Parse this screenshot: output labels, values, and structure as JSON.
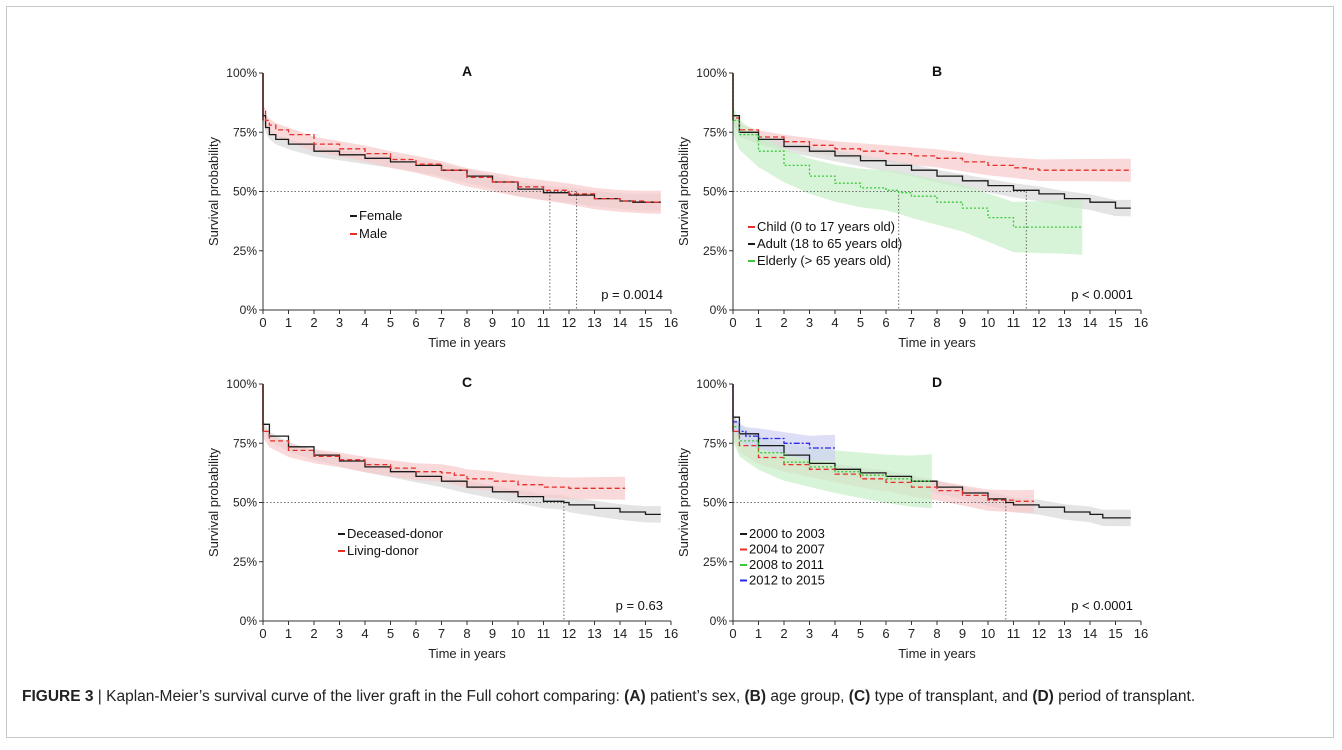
{
  "caption": {
    "label": "FIGURE 3",
    "separator": " | ",
    "text": "Kaplan-Meier’s survival curve of the liver graft in the Full cohort comparing: ",
    "parts": [
      {
        "key": "(A)",
        "text": " patient’s sex, "
      },
      {
        "key": "(B)",
        "text": " age group, "
      },
      {
        "key": "(C)",
        "text": " type of transplant, and "
      },
      {
        "key": "(D)",
        "text": " period of transplant."
      }
    ]
  },
  "colors": {
    "black": "#1a1a1a",
    "red": "#e8302a",
    "green": "#3cc83c",
    "blue": "#2a2ae8",
    "ci_gray": "#d9d9d9",
    "ci_red": "#f6c9c9",
    "ci_green": "#c8f0c8"
  },
  "chart_data": [
    {
      "panel": "A",
      "type": "line",
      "title": "A",
      "xlabel": "Time in years",
      "ylabel": "Survival probability",
      "xlim": [
        0,
        16
      ],
      "ylim": [
        0,
        1
      ],
      "xticks": [
        "0",
        "1",
        "2",
        "3",
        "4",
        "5",
        "6",
        "7",
        "8",
        "9",
        "10",
        "11",
        "12",
        "13",
        "14",
        "15",
        "16"
      ],
      "yticks": [
        "0%",
        "25%",
        "50%",
        "75%",
        "100%"
      ],
      "pvalue": "p = 0.0014",
      "median_lines": [
        11.25,
        12.3
      ],
      "legend": [
        {
          "name": "Female",
          "color": "black"
        },
        {
          "name": "Male",
          "color": "red"
        }
      ],
      "series": [
        {
          "name": "Female",
          "color": "black",
          "x": [
            0,
            0.1,
            0.25,
            0.5,
            1,
            2,
            3,
            4,
            5,
            6,
            7,
            8,
            9,
            10,
            11,
            12,
            13,
            14,
            14.5,
            15.6
          ],
          "y": [
            0.82,
            0.77,
            0.74,
            0.72,
            0.7,
            0.67,
            0.655,
            0.64,
            0.625,
            0.61,
            0.59,
            0.565,
            0.54,
            0.51,
            0.495,
            0.485,
            0.47,
            0.46,
            0.455,
            0.455
          ]
        },
        {
          "name": "Male",
          "color": "red",
          "x": [
            0,
            0.1,
            0.25,
            0.5,
            1,
            2,
            3,
            4,
            5,
            6,
            7,
            8,
            9,
            10,
            11,
            12,
            13,
            14,
            15,
            15.6
          ],
          "y": [
            0.85,
            0.8,
            0.78,
            0.76,
            0.74,
            0.7,
            0.68,
            0.66,
            0.635,
            0.615,
            0.59,
            0.56,
            0.54,
            0.52,
            0.505,
            0.49,
            0.47,
            0.46,
            0.455,
            0.455
          ]
        }
      ]
    },
    {
      "panel": "B",
      "type": "line",
      "title": "B",
      "xlabel": "Time in years",
      "ylabel": "Survival probability",
      "xlim": [
        0,
        16
      ],
      "ylim": [
        0,
        1
      ],
      "xticks": [
        "0",
        "1",
        "2",
        "3",
        "4",
        "5",
        "6",
        "7",
        "8",
        "9",
        "10",
        "11",
        "12",
        "13",
        "14",
        "15",
        "16"
      ],
      "yticks": [
        "0%",
        "25%",
        "50%",
        "75%",
        "100%"
      ],
      "pvalue": "p < 0.0001",
      "median_lines": [
        6.5,
        11.5
      ],
      "legend": [
        {
          "name": "Child (0 to 17 years old)",
          "color": "red"
        },
        {
          "name": "Adult (18 to 65 years old)",
          "color": "black"
        },
        {
          "name": "Elderly (> 65 years old)",
          "color": "green"
        }
      ],
      "series": [
        {
          "name": "Child (0 to 17 years old)",
          "color": "red",
          "x": [
            0,
            0.25,
            1,
            2,
            3,
            4,
            5,
            6,
            7,
            8,
            9,
            10,
            11,
            11.5,
            12,
            14,
            15.6
          ],
          "y": [
            0.81,
            0.76,
            0.73,
            0.71,
            0.695,
            0.68,
            0.67,
            0.66,
            0.65,
            0.64,
            0.625,
            0.61,
            0.6,
            0.595,
            0.59,
            0.59,
            0.59
          ]
        },
        {
          "name": "Adult (18 to 65 years old)",
          "color": "black",
          "x": [
            0,
            0.25,
            1,
            2,
            3,
            4,
            5,
            6,
            7,
            8,
            9,
            10,
            11,
            12,
            13,
            14,
            15,
            15.6
          ],
          "y": [
            0.82,
            0.75,
            0.72,
            0.69,
            0.67,
            0.65,
            0.63,
            0.61,
            0.59,
            0.565,
            0.545,
            0.525,
            0.505,
            0.49,
            0.47,
            0.455,
            0.43,
            0.43
          ]
        },
        {
          "name": "Elderly (> 65 years old)",
          "color": "green",
          "x": [
            0,
            0.25,
            1,
            2,
            3,
            4,
            5,
            6,
            6.5,
            7,
            8,
            9,
            10,
            11,
            12,
            13,
            13.7
          ],
          "y": [
            0.8,
            0.74,
            0.67,
            0.61,
            0.565,
            0.535,
            0.515,
            0.505,
            0.495,
            0.48,
            0.455,
            0.43,
            0.39,
            0.35,
            0.35,
            0.35,
            0.35
          ]
        }
      ]
    },
    {
      "panel": "C",
      "type": "line",
      "title": "C",
      "xlabel": "Time in years",
      "ylabel": "Survival probability",
      "xlim": [
        0,
        16
      ],
      "ylim": [
        0,
        1
      ],
      "xticks": [
        "0",
        "1",
        "2",
        "3",
        "4",
        "5",
        "6",
        "7",
        "8",
        "9",
        "10",
        "11",
        "12",
        "13",
        "14",
        "15",
        "16"
      ],
      "yticks": [
        "0%",
        "25%",
        "50%",
        "75%",
        "100%"
      ],
      "pvalue": "p = 0.63",
      "median_lines": [
        11.8
      ],
      "legend": [
        {
          "name": "Deceased-donor",
          "color": "black"
        },
        {
          "name": "Living-donor",
          "color": "red"
        }
      ],
      "series": [
        {
          "name": "Deceased-donor",
          "color": "black",
          "x": [
            0,
            0.25,
            1,
            2,
            3,
            4,
            5,
            6,
            7,
            8,
            9,
            10,
            11,
            11.8,
            12,
            13,
            14,
            15,
            15.6
          ],
          "y": [
            0.83,
            0.78,
            0.735,
            0.7,
            0.675,
            0.65,
            0.63,
            0.61,
            0.59,
            0.565,
            0.545,
            0.525,
            0.505,
            0.5,
            0.49,
            0.475,
            0.46,
            0.45,
            0.45
          ]
        },
        {
          "name": "Living-donor",
          "color": "red",
          "x": [
            0,
            0.25,
            1,
            2,
            3,
            4,
            5,
            6,
            7,
            7.5,
            8,
            9,
            10,
            11,
            12,
            13,
            14.2
          ],
          "y": [
            0.8,
            0.76,
            0.72,
            0.695,
            0.68,
            0.66,
            0.645,
            0.63,
            0.625,
            0.615,
            0.6,
            0.59,
            0.575,
            0.565,
            0.56,
            0.56,
            0.56
          ]
        }
      ]
    },
    {
      "panel": "D",
      "type": "line",
      "title": "D",
      "xlabel": "Time in years",
      "ylabel": "Survival probability",
      "xlim": [
        0,
        16
      ],
      "ylim": [
        0,
        1
      ],
      "xticks": [
        "0",
        "1",
        "2",
        "3",
        "4",
        "5",
        "6",
        "7",
        "8",
        "9",
        "10",
        "11",
        "12",
        "13",
        "14",
        "15",
        "16"
      ],
      "yticks": [
        "0%",
        "25%",
        "50%",
        "75%",
        "100%"
      ],
      "pvalue": "p < 0.0001",
      "median_lines": [
        10.7
      ],
      "legend": [
        {
          "name": "2000 to 2003",
          "color": "black"
        },
        {
          "name": "2004 to 2007",
          "color": "red"
        },
        {
          "name": "2008 to 2011",
          "color": "green"
        },
        {
          "name": "2012 to 2015",
          "color": "blue"
        }
      ],
      "series": [
        {
          "name": "2000 to 2003",
          "color": "black",
          "x": [
            0,
            0.25,
            1,
            2,
            3,
            4,
            5,
            6,
            7,
            8,
            9,
            10,
            10.7,
            11,
            12,
            13,
            14,
            14.5,
            15.6
          ],
          "y": [
            0.86,
            0.79,
            0.74,
            0.7,
            0.665,
            0.64,
            0.625,
            0.61,
            0.59,
            0.565,
            0.54,
            0.515,
            0.5,
            0.49,
            0.48,
            0.46,
            0.45,
            0.435,
            0.435
          ]
        },
        {
          "name": "2004 to 2007",
          "color": "red",
          "x": [
            0,
            0.25,
            1,
            2,
            3,
            4,
            5,
            6,
            7,
            8,
            9,
            10,
            11,
            11.8
          ],
          "y": [
            0.8,
            0.74,
            0.69,
            0.66,
            0.64,
            0.62,
            0.6,
            0.585,
            0.565,
            0.55,
            0.53,
            0.51,
            0.505,
            0.505
          ]
        },
        {
          "name": "2008 to 2011",
          "color": "green",
          "x": [
            0,
            0.25,
            1,
            2,
            3,
            4,
            5,
            6,
            7,
            7.8
          ],
          "y": [
            0.82,
            0.76,
            0.71,
            0.67,
            0.65,
            0.63,
            0.615,
            0.6,
            0.59,
            0.59
          ]
        },
        {
          "name": "2012 to 2015",
          "color": "blue",
          "x": [
            0,
            0.25,
            0.5,
            1,
            2,
            3,
            4
          ],
          "y": [
            0.84,
            0.8,
            0.78,
            0.77,
            0.75,
            0.73,
            0.73
          ]
        }
      ]
    }
  ]
}
